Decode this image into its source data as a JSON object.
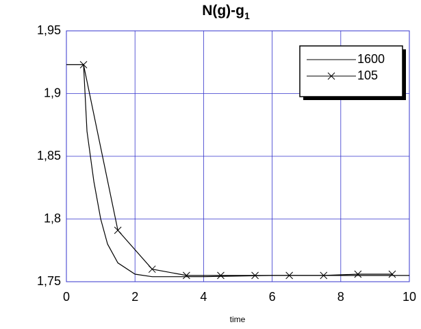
{
  "chart_data": {
    "type": "line",
    "title": "N(g)-g",
    "title_subscript": "1",
    "xlabel": "time",
    "xlim": [
      0,
      10
    ],
    "xticks": [
      0,
      2,
      4,
      6,
      8,
      10
    ],
    "ylim": [
      1.75,
      1.95
    ],
    "yticks": [
      {
        "value": 1.75,
        "label": "1,75"
      },
      {
        "value": 1.8,
        "label": "1,8"
      },
      {
        "value": 1.85,
        "label": "1,85"
      },
      {
        "value": 1.9,
        "label": "1,9"
      },
      {
        "value": 1.95,
        "label": "1,95"
      }
    ],
    "grid": true,
    "legend": "upper right",
    "series": [
      {
        "name": "1600",
        "color": "#000000",
        "marker": "none",
        "x": [
          0,
          0.5,
          0.6,
          0.8,
          1,
          1.2,
          1.5,
          2,
          2.5,
          3,
          4,
          6,
          8,
          10
        ],
        "values": [
          1.923,
          1.923,
          1.87,
          1.83,
          1.8,
          1.78,
          1.765,
          1.756,
          1.754,
          1.754,
          1.754,
          1.755,
          1.755,
          1.755
        ]
      },
      {
        "name": "105",
        "color": "#000000",
        "marker": "x",
        "x": [
          0.5,
          1.5,
          2.5,
          3.5,
          4.5,
          5.5,
          6.5,
          7.5,
          8.5,
          9.5
        ],
        "values": [
          1.923,
          1.791,
          1.76,
          1.755,
          1.755,
          1.755,
          1.755,
          1.755,
          1.756,
          1.756
        ]
      }
    ]
  }
}
